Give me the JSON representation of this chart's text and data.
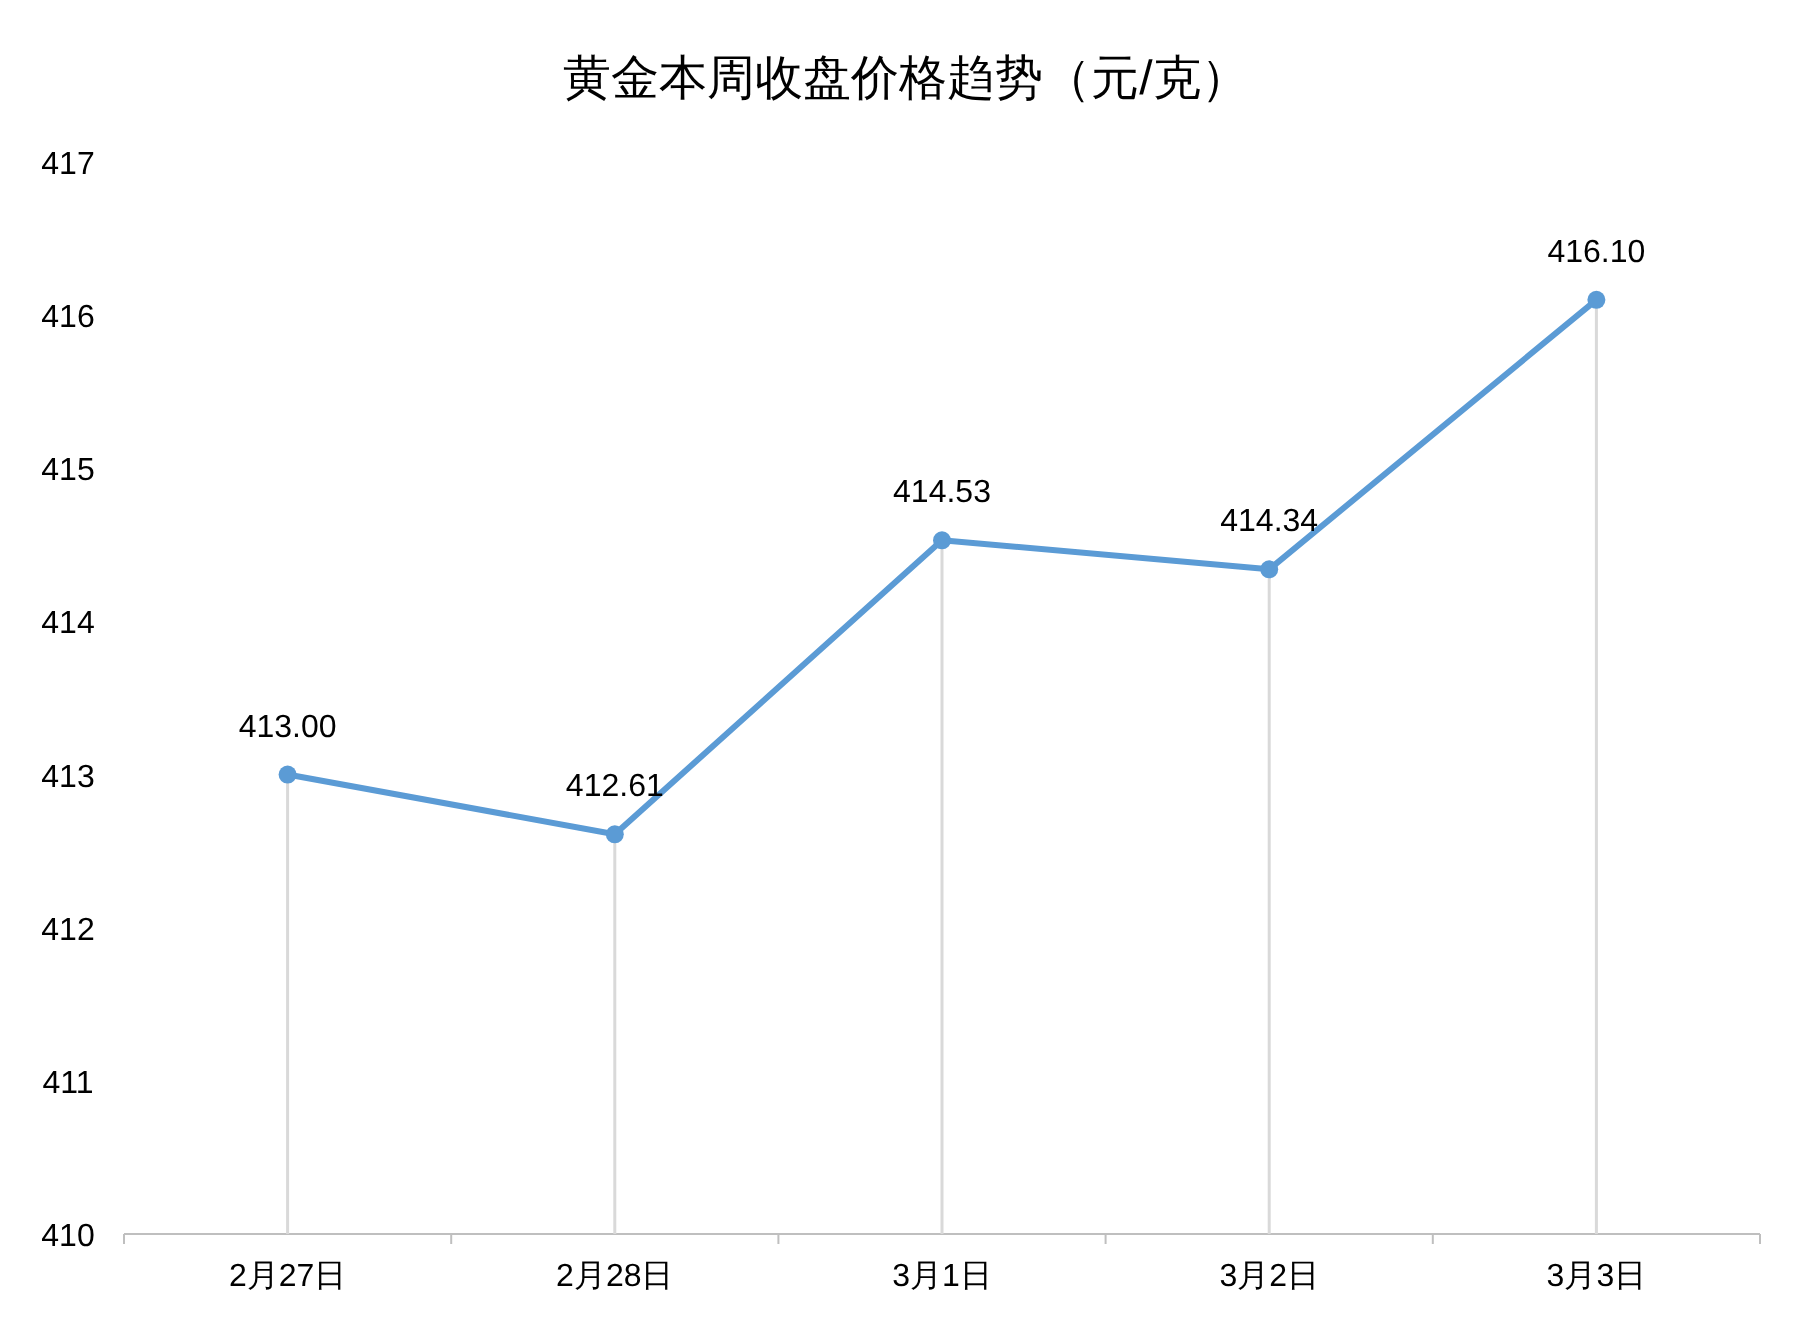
{
  "chart_data": {
    "type": "line",
    "title": "黄金本周收盘价格趋势（元/克）",
    "categories": [
      "2月27日",
      "2月28日",
      "3月1日",
      "3月2日",
      "3月3日"
    ],
    "series": [
      {
        "color": "#5b9bd5",
        "values": [
          413.0,
          412.61,
          414.53,
          414.34,
          416.1
        ],
        "value_labels": [
          "413.00",
          "412.61",
          "414.53",
          "414.34",
          "416.10"
        ]
      }
    ],
    "ylim": [
      410,
      417
    ],
    "yticks": [
      410,
      411,
      412,
      413,
      414,
      415,
      416,
      417
    ],
    "grid": "x",
    "marker": "circle",
    "line_style": "solid"
  }
}
